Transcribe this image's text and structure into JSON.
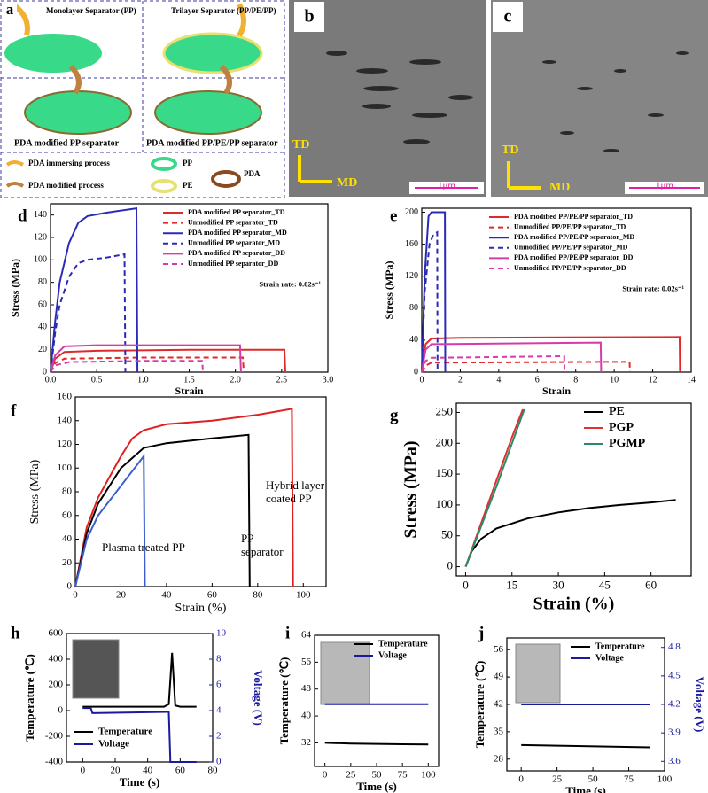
{
  "panel_a": {
    "label": "a",
    "top_left": "Monolayer Separator (PP)",
    "top_right": "Trilayer Separator (PP/PE/PP)",
    "bottom_left": "PDA modified PP separator",
    "bottom_right": "PDA modified PP/PE/PP separator",
    "legend": [
      "PDA immersing process",
      "PDA modified process",
      "PP",
      "PE",
      "PDA"
    ]
  },
  "panel_b": {
    "label": "b",
    "td": "TD",
    "md": "MD",
    "scale": "1μm"
  },
  "panel_c": {
    "label": "c",
    "td": "TD",
    "md": "MD",
    "scale": "1μm"
  },
  "chart_data": [
    {
      "panel": "d",
      "type": "line",
      "xlabel": "Strain",
      "ylabel": "Stress (MPa)",
      "xlim": [
        0,
        3
      ],
      "xticks": [
        {
          "value": 0,
          "label": "0.0"
        },
        0.5,
        {
          "value": 1,
          "label": "1.0"
        },
        1.5,
        {
          "value": 2,
          "label": "2.0"
        },
        2.5,
        {
          "value": 3,
          "label": "3.0"
        }
      ],
      "ylim": [
        0,
        150
      ],
      "yticks": [
        0,
        20,
        40,
        60,
        80,
        100,
        120,
        140
      ],
      "legend": "upper right",
      "note": "Strain rate: 0.02s⁻¹",
      "series": [
        {
          "name": "PDA modified PP separator_TD",
          "color": "#e02a2a",
          "dash": false,
          "x": [
            0,
            0.05,
            0.15,
            0.5,
            1.5,
            2.53,
            2.54
          ],
          "values": [
            0,
            12,
            18,
            19,
            20,
            20,
            0
          ]
        },
        {
          "name": "Unmodified PP separator_TD",
          "color": "#e02a2a",
          "dash": true,
          "x": [
            0,
            0.05,
            0.15,
            1,
            2.08,
            2.09
          ],
          "values": [
            0,
            8,
            12,
            13,
            13,
            0
          ]
        },
        {
          "name": "PDA modified PP separator_MD",
          "color": "#2a2ab8",
          "dash": false,
          "x": [
            0,
            0.05,
            0.1,
            0.2,
            0.3,
            0.4,
            0.6,
            0.93,
            0.94
          ],
          "values": [
            0,
            45,
            80,
            115,
            133,
            139,
            142,
            146,
            0
          ]
        },
        {
          "name": "Unmodified PP separator_MD",
          "color": "#2a2ab8",
          "dash": true,
          "x": [
            0,
            0.05,
            0.1,
            0.2,
            0.3,
            0.4,
            0.6,
            0.8,
            0.81
          ],
          "values": [
            0,
            35,
            60,
            85,
            97,
            100,
            102,
            105,
            0
          ]
        },
        {
          "name": "PDA modified PP separator_DD",
          "color": "#d63ca8",
          "dash": false,
          "x": [
            0,
            0.05,
            0.15,
            0.5,
            1.5,
            2.05,
            2.06
          ],
          "values": [
            0,
            15,
            23,
            24,
            24,
            24,
            0
          ]
        },
        {
          "name": "Unmodified PP separator_DD",
          "color": "#d63ca8",
          "dash": true,
          "x": [
            0,
            0.05,
            0.2,
            1,
            1.64,
            1.65
          ],
          "values": [
            0,
            6,
            9,
            10,
            10,
            0
          ]
        }
      ]
    },
    {
      "panel": "e",
      "type": "line",
      "xlabel": "Strain",
      "ylabel": "Stress (MPa)",
      "xlim": [
        0,
        14
      ],
      "xticks": [
        0,
        2,
        4,
        6,
        8,
        10,
        12,
        14
      ],
      "ylim": [
        0,
        205
      ],
      "yticks": [
        0,
        40,
        80,
        120,
        160,
        200
      ],
      "legend": "upper right",
      "note": "Strain rate: 0.02s⁻¹",
      "series": [
        {
          "name": "PDA modified PP/PE/PP separator_TD",
          "color": "#e02a2a",
          "dash": false,
          "x": [
            0,
            0.2,
            0.5,
            2,
            13.4,
            13.42
          ],
          "values": [
            0,
            35,
            42,
            43,
            44,
            0
          ]
        },
        {
          "name": "Unmodified PP/PE/PP separator_TD",
          "color": "#e02a2a",
          "dash": true,
          "x": [
            0,
            0.2,
            0.5,
            10.8,
            10.82
          ],
          "values": [
            0,
            8,
            12,
            13,
            0
          ]
        },
        {
          "name": "PDA modified PP/PE/PP separator_MD",
          "color": "#2a2ab8",
          "dash": false,
          "x": [
            0,
            0.15,
            0.35,
            0.5,
            1.2,
            1.22
          ],
          "values": [
            0,
            120,
            195,
            200,
            200,
            0
          ]
        },
        {
          "name": "Unmodified PP/PE/PP separator_MD",
          "color": "#2a2ab8",
          "dash": true,
          "x": [
            0,
            0.15,
            0.4,
            0.6,
            0.8,
            0.82
          ],
          "values": [
            0,
            100,
            160,
            172,
            175,
            0
          ]
        },
        {
          "name": "PDA modified PP/PE/PP separator_DD",
          "color": "#d63ca8",
          "dash": false,
          "x": [
            0,
            0.2,
            0.5,
            9.3,
            9.32
          ],
          "values": [
            0,
            28,
            35,
            37,
            0
          ]
        },
        {
          "name": "Unmodified PP/PE/PP separator_DD",
          "color": "#d63ca8",
          "dash": true,
          "x": [
            0,
            0.2,
            0.5,
            7.4,
            7.42
          ],
          "values": [
            0,
            14,
            18,
            20,
            0
          ]
        }
      ]
    },
    {
      "panel": "f",
      "type": "line",
      "xlabel": "Strain (%)",
      "ylabel": "Stress (MPa)",
      "xlim": [
        0,
        110
      ],
      "xticks": [
        0,
        20,
        40,
        60,
        80,
        100
      ],
      "ylim": [
        0,
        160
      ],
      "yticks": [
        0,
        20,
        40,
        60,
        80,
        100,
        120,
        140,
        160
      ],
      "annotations": [
        "Hybrid layer coated PP",
        "Plasma treated PP",
        "PP separator"
      ],
      "series": [
        {
          "color": "#e02020",
          "dash": false,
          "x": [
            0,
            5,
            10,
            20,
            25,
            30,
            40,
            60,
            80,
            95,
            95.5
          ],
          "values": [
            0,
            50,
            75,
            110,
            125,
            132,
            137,
            140,
            145,
            150,
            0
          ]
        },
        {
          "color": "#000000",
          "dash": false,
          "x": [
            0,
            5,
            10,
            20,
            30,
            40,
            60,
            76,
            76.5
          ],
          "values": [
            0,
            45,
            70,
            100,
            117,
            121,
            125,
            128,
            0
          ]
        },
        {
          "color": "#3a5fcd",
          "dash": false,
          "x": [
            0,
            5,
            10,
            20,
            30,
            30.5
          ],
          "values": [
            0,
            40,
            60,
            85,
            110,
            0
          ]
        }
      ]
    },
    {
      "panel": "g",
      "type": "line",
      "xlabel": "Strain (%)",
      "ylabel": "Stress (MPa)",
      "xlim": [
        -3,
        73
      ],
      "xticks": [
        0,
        15,
        30,
        45,
        60
      ],
      "ylim": [
        -15,
        265
      ],
      "yticks": [
        0,
        50,
        100,
        150,
        200,
        250
      ],
      "legend": "upper right",
      "series": [
        {
          "name": "PE",
          "color": "#000000",
          "dash": false,
          "x": [
            0,
            2,
            5,
            10,
            20,
            30,
            40,
            50,
            60,
            68
          ],
          "values": [
            0,
            25,
            45,
            62,
            78,
            88,
            95,
            100,
            104,
            108
          ]
        },
        {
          "name": "PGP",
          "color": "#e03030",
          "dash": false,
          "x": [
            0,
            5,
            10,
            15,
            18.5
          ],
          "values": [
            0,
            70,
            140,
            210,
            255
          ]
        },
        {
          "name": "PGMP",
          "color": "#2a8a6a",
          "dash": false,
          "x": [
            0,
            5,
            10,
            15,
            19
          ],
          "values": [
            0,
            65,
            130,
            200,
            255
          ]
        }
      ]
    },
    {
      "panel": "h",
      "type": "line",
      "xlabel": "Time (s)",
      "ylabel": "Temperature (℃)",
      "y2label": "Voltage (V)",
      "xlim": [
        -10,
        80
      ],
      "xticks": [
        0,
        20,
        40,
        60,
        80
      ],
      "ylim": [
        -400,
        600
      ],
      "yticks": [
        -400,
        -200,
        0,
        200,
        400,
        600
      ],
      "y2lim": [
        0,
        10
      ],
      "y2ticks": [
        0,
        2,
        4,
        6,
        8,
        10
      ],
      "legend": "lower left",
      "series": [
        {
          "name": "Temperature",
          "color": "#000000",
          "dash": false,
          "x": [
            0,
            5,
            50,
            53,
            55,
            57,
            60,
            70
          ],
          "values": [
            30,
            30,
            30,
            50,
            450,
            40,
            30,
            30
          ]
        },
        {
          "name": "Voltage",
          "color": "#1a1aa0",
          "dash": false,
          "axis": "y2",
          "x": [
            0,
            5,
            6,
            52,
            53,
            54,
            70
          ],
          "values": [
            4.2,
            4.2,
            3.8,
            3.9,
            3.9,
            0,
            0
          ]
        }
      ]
    },
    {
      "panel": "i",
      "type": "line",
      "xlabel": "Time (s)",
      "ylabel": "Temperature (℃)",
      "xlim": [
        -10,
        110
      ],
      "xticks": [
        0,
        25,
        50,
        75,
        100
      ],
      "ylim": [
        25,
        64
      ],
      "yticks": [
        32,
        40,
        48,
        56,
        64
      ],
      "legend": "upper right",
      "series": [
        {
          "name": "Temperature",
          "color": "#000000",
          "dash": false,
          "x": [
            0,
            25,
            50,
            75,
            100
          ],
          "values": [
            32,
            31.8,
            31.7,
            31.6,
            31.5
          ]
        },
        {
          "name": "Voltage",
          "color": "#1a1aa0",
          "dash": false,
          "x": [
            0,
            100
          ],
          "values": [
            43.5,
            43.5
          ]
        }
      ]
    },
    {
      "panel": "j",
      "type": "line",
      "xlabel": "Time (s)",
      "ylabel": "Temperature (℃)",
      "y2label": "Voltage (V)",
      "xlim": [
        -10,
        100
      ],
      "xticks": [
        0,
        25,
        50,
        75,
        100
      ],
      "ylim": [
        25,
        59
      ],
      "yticks": [
        28,
        35,
        42,
        49,
        56
      ],
      "y2lim": [
        3.5,
        4.9
      ],
      "y2ticks": [
        3.6,
        3.9,
        4.2,
        4.5,
        4.8
      ],
      "legend": "upper right",
      "series": [
        {
          "name": "Temperature",
          "color": "#000000",
          "dash": false,
          "x": [
            0,
            30,
            60,
            90
          ],
          "values": [
            31.6,
            31.4,
            31.2,
            31
          ]
        },
        {
          "name": "Voltage",
          "color": "#1a1aa0",
          "dash": false,
          "axis": "y2",
          "x": [
            0,
            90
          ],
          "values": [
            4.2,
            4.2
          ]
        }
      ]
    }
  ]
}
